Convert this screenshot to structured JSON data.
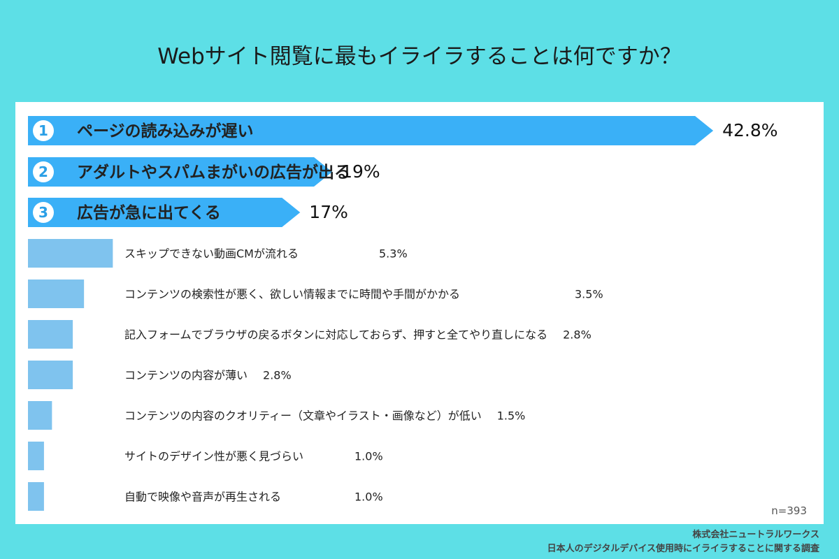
{
  "chart_data": {
    "type": "bar",
    "orientation": "horizontal",
    "title": "Webサイト閲覧に最もイライラすることは何ですか？",
    "categories": [
      "ページの読み込みが遅い",
      "アダルトやスパムまがいの広告が出る",
      "広告が急に出てくる",
      "スキップできない動画CMが流れる",
      "コンテンツの検索性が悪く、欲しい情報までに時間や手間がかかる",
      "記入フォームでブラウザの戻るボタンに対応しておらず、押すと全てやり直しになる",
      "コンテンツの内容が薄い",
      "コンテンツの内容のクオリティー（文章やイラスト・画像など）が低い",
      "サイトのデザイン性が悪く見づらい",
      "自動で映像や音声が再生される"
    ],
    "values": [
      42.8,
      19,
      17,
      5.3,
      3.5,
      2.8,
      2.8,
      1.5,
      1.0,
      1.0
    ],
    "value_labels": [
      "42.8%",
      "19%",
      "17%",
      "5.3%",
      "3.5%",
      "2.8%",
      "2.8%",
      "1.5%",
      "1.0%",
      "1.0%"
    ],
    "ranks": [
      "1",
      "2",
      "3"
    ],
    "colors": {
      "top": "#3ab0f7",
      "rest": "#7fc3ee",
      "background": "#5ddfe6",
      "badge_text": "#2a9fe6"
    }
  },
  "sample_size": "n=393",
  "source": {
    "company": "株式会社ニュートラルワークス",
    "survey": "日本人のデジタルデバイス使用時にイライラすることに関する調査"
  }
}
